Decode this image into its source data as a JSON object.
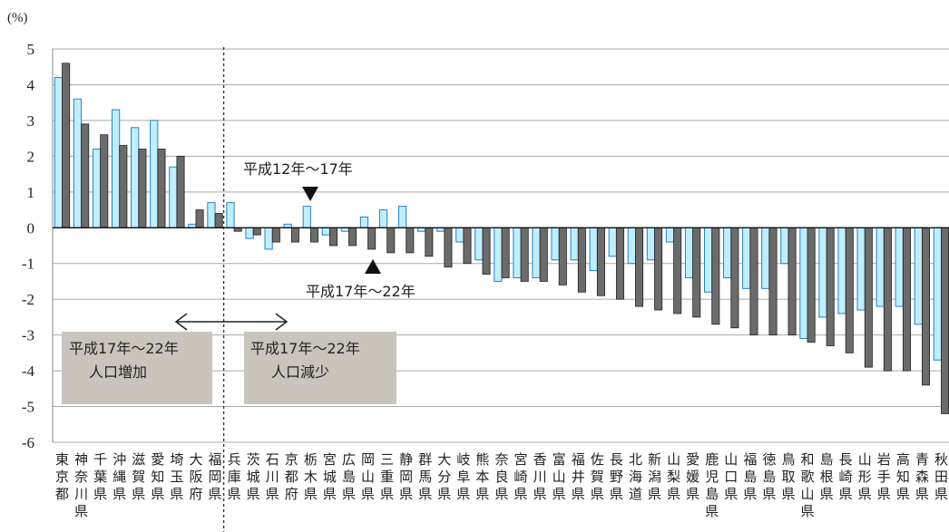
{
  "chart_data": {
    "type": "bar",
    "unit_label": "(%)",
    "ylim": [
      -6,
      5
    ],
    "yticks": [
      5,
      4,
      3,
      2,
      1,
      0,
      -1,
      -2,
      -3,
      -4,
      -5,
      -6
    ],
    "grid": true,
    "categories": [
      "東京都",
      "神奈川県",
      "千葉県",
      "沖縄県",
      "滋賀県",
      "愛知県",
      "埼玉県",
      "大阪府",
      "福岡県",
      "兵庫県",
      "茨城県",
      "石川県",
      "京都府",
      "栃木県",
      "宮城県",
      "広島県",
      "岡山県",
      "三重県",
      "静岡県",
      "群馬県",
      "大分県",
      "岐阜県",
      "熊本県",
      "奈良県",
      "宮崎県",
      "香川県",
      "富山県",
      "福井県",
      "佐賀県",
      "長野県",
      "北海道",
      "新潟県",
      "山梨県",
      "愛媛県",
      "鹿児島県",
      "山口県",
      "福島県",
      "徳島県",
      "鳥取県",
      "和歌山県",
      "島根県",
      "長崎県",
      "山形県",
      "岩手県",
      "高知県",
      "青森県",
      "秋田県"
    ],
    "series": [
      {
        "name": "平成12年～17年",
        "color": "#bfefff",
        "values": [
          4.2,
          3.6,
          2.2,
          3.3,
          2.8,
          3.0,
          1.7,
          0.1,
          0.7,
          0.7,
          -0.3,
          -0.6,
          0.1,
          0.6,
          -0.2,
          -0.1,
          0.3,
          0.5,
          0.6,
          -0.1,
          -0.1,
          -0.4,
          -0.9,
          -1.5,
          -1.4,
          -1.4,
          -0.9,
          -0.9,
          -1.2,
          -0.8,
          -1.0,
          -0.9,
          -0.4,
          -1.4,
          -1.8,
          -1.4,
          -1.7,
          -1.7,
          -1.0,
          -3.1,
          -2.5,
          -2.4,
          -2.3,
          -2.2,
          -2.2,
          -2.7,
          -3.7
        ]
      },
      {
        "name": "平成17年～22年",
        "color": "#6b6b6b",
        "values": [
          4.6,
          2.9,
          2.6,
          2.3,
          2.2,
          2.2,
          2.0,
          0.5,
          0.4,
          -0.1,
          -0.2,
          -0.4,
          -0.4,
          -0.4,
          -0.5,
          -0.5,
          -0.6,
          -0.7,
          -0.7,
          -0.8,
          -1.1,
          -1.0,
          -1.3,
          -1.4,
          -1.5,
          -1.5,
          -1.6,
          -1.8,
          -1.9,
          -2.0,
          -2.2,
          -2.3,
          -2.4,
          -2.5,
          -2.7,
          -2.8,
          -3.0,
          -3.0,
          -3.0,
          -3.2,
          -3.3,
          -3.5,
          -3.9,
          -4.0,
          -4.0,
          -4.4,
          -5.2
        ]
      }
    ],
    "divider_after_index": 8,
    "annotations": {
      "arrow_down_label": "平成12年～17年",
      "arrow_up_label": "平成17年～22年",
      "increase_box": [
        "平成17年～22年",
        "人口増加"
      ],
      "decrease_box": [
        "平成17年～22年",
        "人口減少"
      ]
    }
  }
}
